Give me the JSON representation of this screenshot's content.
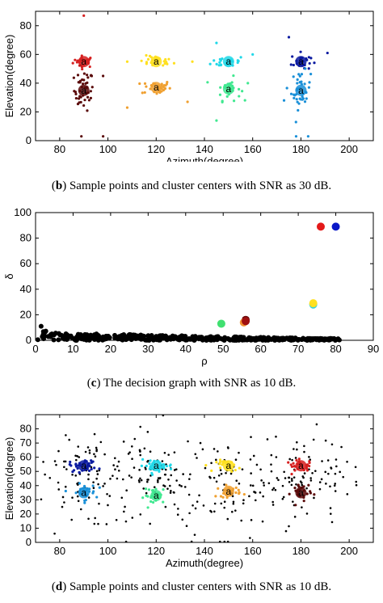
{
  "captions": {
    "b": {
      "label": "b",
      "text": "Sample points and cluster centers with SNR as 30 dB."
    },
    "c": {
      "label": "c",
      "text": "The decision graph with SNR as 10 dB."
    },
    "d": {
      "label": "d",
      "text": "Sample points and cluster centers with SNR as 10 dB."
    }
  },
  "chart_data": [
    {
      "id": "b",
      "type": "scatter",
      "xlabel": "Azimuth(degree)",
      "ylabel": "Elevation(degree)",
      "xlim": [
        70,
        210
      ],
      "ylim": [
        0,
        90
      ],
      "xticks": [
        80,
        100,
        120,
        140,
        160,
        180,
        200
      ],
      "yticks": [
        0,
        20,
        40,
        60,
        80
      ],
      "grid": false,
      "clusters": [
        {
          "color": "#d62020",
          "cx": 90,
          "cy": 55,
          "sx": 2.2,
          "sy": 2.0,
          "n": 28
        },
        {
          "color": "#5a0a0a",
          "cx": 90,
          "cy": 35,
          "sx": 2.0,
          "sy": 7.0,
          "n": 45
        },
        {
          "color": "#ffe020",
          "cx": 120,
          "cy": 55,
          "sx": 3.5,
          "sy": 2.0,
          "n": 32
        },
        {
          "color": "#f0a030",
          "cx": 120,
          "cy": 37,
          "sx": 3.0,
          "sy": 2.5,
          "n": 35
        },
        {
          "color": "#20d8e8",
          "cx": 150,
          "cy": 55,
          "sx": 3.5,
          "sy": 2.0,
          "n": 30
        },
        {
          "color": "#40e890",
          "cx": 150,
          "cy": 36,
          "sx": 2.5,
          "sy": 4.0,
          "n": 30
        },
        {
          "color": "#0a1aa0",
          "cx": 180,
          "cy": 55,
          "sx": 2.0,
          "sy": 3.0,
          "n": 26
        },
        {
          "color": "#1a90d8",
          "cx": 180,
          "cy": 35,
          "sx": 2.0,
          "sy": 6.5,
          "n": 40
        }
      ],
      "outliers": [
        {
          "x": 90,
          "y": 87,
          "color": "#d62020"
        },
        {
          "x": 89,
          "y": 3,
          "color": "#5a0a0a"
        },
        {
          "x": 98,
          "y": 3,
          "color": "#5a0a0a"
        },
        {
          "x": 98,
          "y": 45,
          "color": "#5a0a0a"
        },
        {
          "x": 108,
          "y": 23,
          "color": "#f0a030"
        },
        {
          "x": 133,
          "y": 27,
          "color": "#f0a030"
        },
        {
          "x": 108,
          "y": 55,
          "color": "#ffe020"
        },
        {
          "x": 135,
          "y": 55,
          "color": "#ffe020"
        },
        {
          "x": 145,
          "y": 68,
          "color": "#20d8e8"
        },
        {
          "x": 160,
          "y": 60,
          "color": "#20d8e8"
        },
        {
          "x": 145,
          "y": 14,
          "color": "#40e890"
        },
        {
          "x": 158,
          "y": 40,
          "color": "#40e890"
        },
        {
          "x": 175,
          "y": 72,
          "color": "#0a1aa0"
        },
        {
          "x": 191,
          "y": 61,
          "color": "#0a1aa0"
        },
        {
          "x": 173,
          "y": 28,
          "color": "#1a90d8"
        },
        {
          "x": 178,
          "y": 3,
          "color": "#1a90d8"
        },
        {
          "x": 183,
          "y": 3,
          "color": "#1a90d8"
        }
      ],
      "centers": [
        {
          "x": 90,
          "y": 55,
          "label": "a"
        },
        {
          "x": 90,
          "y": 35,
          "label": "a"
        },
        {
          "x": 120,
          "y": 55,
          "label": "a"
        },
        {
          "x": 120,
          "y": 37,
          "label": "a"
        },
        {
          "x": 150,
          "y": 55,
          "label": "a"
        },
        {
          "x": 150,
          "y": 36,
          "label": "a"
        },
        {
          "x": 180,
          "y": 55,
          "label": "a"
        },
        {
          "x": 180,
          "y": 35,
          "label": "a"
        }
      ]
    },
    {
      "id": "c",
      "type": "scatter",
      "xlabel": "ρ",
      "ylabel": "δ",
      "xlim": [
        0,
        90
      ],
      "ylim": [
        0,
        100
      ],
      "xticks": [
        0,
        10,
        20,
        30,
        40,
        50,
        60,
        70,
        80,
        90
      ],
      "yticks": [
        0,
        20,
        40,
        60,
        80,
        100
      ],
      "grid": false,
      "highlighted": [
        {
          "x": 76,
          "y": 89,
          "color": "#e41a1a"
        },
        {
          "x": 80,
          "y": 89,
          "color": "#0a18c8"
        },
        {
          "x": 74,
          "y": 28,
          "color": "#30d0e0"
        },
        {
          "x": 74,
          "y": 29,
          "color": "#ffe020"
        },
        {
          "x": 56,
          "y": 16,
          "color": "#6a0a0a"
        },
        {
          "x": 55.5,
          "y": 14,
          "color": "#f09030"
        },
        {
          "x": 49.5,
          "y": 13,
          "color": "#40e070"
        },
        {
          "x": 56,
          "y": 15,
          "color": "#a01010"
        }
      ],
      "background_points": {
        "color": "#000000",
        "n": 420,
        "xrange": [
          0,
          81
        ],
        "ymax_start": 25
      }
    },
    {
      "id": "d",
      "type": "scatter",
      "xlabel": "Azimuth(degree)",
      "ylabel": "Elevation(degree)",
      "xlim": [
        70,
        210
      ],
      "ylim": [
        0,
        90
      ],
      "xticks": [
        80,
        100,
        120,
        140,
        160,
        180,
        200
      ],
      "yticks": [
        0,
        10,
        20,
        30,
        40,
        50,
        60,
        70,
        80
      ],
      "grid": false,
      "clusters": [
        {
          "color": "#0a1aa0",
          "cx": 90,
          "cy": 54,
          "sx": 3.0,
          "sy": 2.2,
          "n": 34
        },
        {
          "color": "#1a90d8",
          "cx": 90,
          "cy": 35,
          "sx": 2.5,
          "sy": 3.0,
          "n": 30
        },
        {
          "color": "#20d8e8",
          "cx": 120,
          "cy": 54,
          "sx": 3.5,
          "sy": 2.0,
          "n": 36
        },
        {
          "color": "#40e890",
          "cx": 120,
          "cy": 33,
          "sx": 2.5,
          "sy": 3.0,
          "n": 30
        },
        {
          "color": "#ffe020",
          "cx": 150,
          "cy": 54,
          "sx": 2.5,
          "sy": 2.0,
          "n": 28
        },
        {
          "color": "#f0a030",
          "cx": 150,
          "cy": 36,
          "sx": 2.5,
          "sy": 2.0,
          "n": 24
        },
        {
          "color": "#d62020",
          "cx": 180,
          "cy": 54,
          "sx": 3.0,
          "sy": 2.0,
          "n": 28
        },
        {
          "color": "#5a0a0a",
          "cx": 180,
          "cy": 35,
          "sx": 2.0,
          "sy": 4.0,
          "n": 28
        }
      ],
      "noise": {
        "color": "#000000",
        "n": 360
      },
      "centers": [
        {
          "x": 90,
          "y": 54,
          "label": "a"
        },
        {
          "x": 90,
          "y": 35,
          "label": "a"
        },
        {
          "x": 120,
          "y": 54,
          "label": "a"
        },
        {
          "x": 120,
          "y": 33,
          "label": "a"
        },
        {
          "x": 150,
          "y": 54,
          "label": "a"
        },
        {
          "x": 150,
          "y": 36,
          "label": "a"
        },
        {
          "x": 180,
          "y": 54,
          "label": "a"
        },
        {
          "x": 180,
          "y": 35,
          "label": "a"
        }
      ]
    }
  ]
}
